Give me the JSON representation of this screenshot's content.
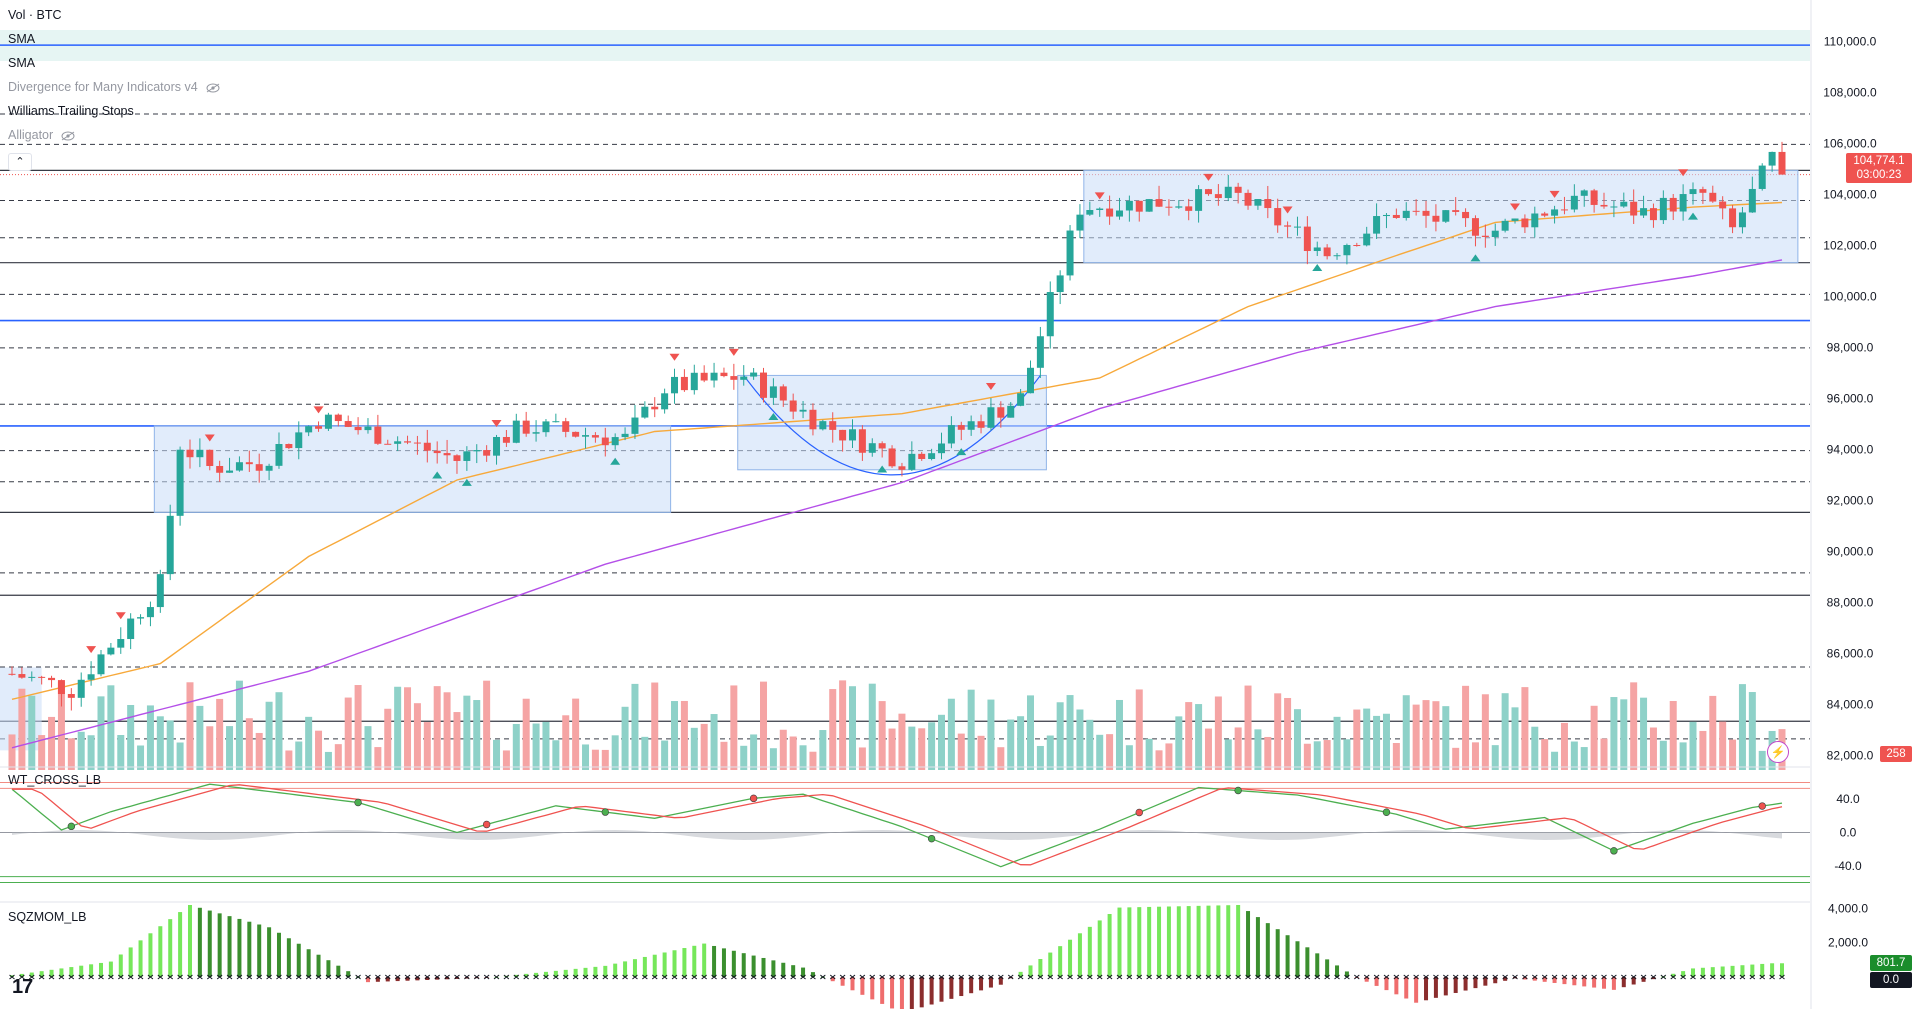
{
  "symbol_label": "Vol · BTC",
  "indicators": [
    {
      "label": "SMA",
      "hidden": false
    },
    {
      "label": "SMA",
      "hidden": false
    },
    {
      "label": "Divergence for Many Indicators v4",
      "hidden": true
    },
    {
      "label": "Williams Trailing Stops",
      "hidden": false
    },
    {
      "label": "Alligator",
      "hidden": true
    }
  ],
  "colors": {
    "up": "#26a69a",
    "down": "#ef5350",
    "vol_up": "#8ed1c8",
    "vol_down": "#f5a4a4",
    "sma_fast": "#f7a93b",
    "sma_slow": "#b44fe8",
    "blue_level": "#2962ff",
    "box_fill": "#c9ddf7"
  },
  "price_axis": {
    "ticks": [
      "110,000.0",
      "108,000.0",
      "106,000.0",
      "104,000.0",
      "102,000.0",
      "100,000.0",
      "98,000.0",
      "96,000.0",
      "94,000.0",
      "92,000.0",
      "90,000.0",
      "88,000.0",
      "86,000.0",
      "84,000.0",
      "82,000.0"
    ]
  },
  "last_price": {
    "value": "104,774.1",
    "countdown": "03:00:23"
  },
  "volume_tag": "258",
  "levels": {
    "blue": [
      109850,
      99050,
      94920
    ],
    "black_solid": [
      104940,
      101320,
      91530,
      88280,
      83340
    ],
    "dashed": [
      107150,
      105960,
      103760,
      102300,
      100080,
      97980,
      95770,
      93950,
      92730,
      89160,
      85470,
      82650
    ]
  },
  "wt_pane": {
    "label": "WT_CROSS_LB",
    "ticks": [
      "40.0",
      "0.0",
      "-40.0"
    ],
    "levels": [
      60,
      53,
      -53,
      -60
    ]
  },
  "sqz_pane": {
    "label": "SQZMOM_LB",
    "ticks": [
      "4,000.0",
      "2,000.0"
    ],
    "value_tag": "801.7",
    "zero_tag": "0.0"
  },
  "logo_text": "17",
  "chart_data": {
    "type": "candlestick",
    "title": "BTC",
    "ylim": [
      81900,
      110600
    ],
    "candle_count": 180,
    "anchors": [
      [
        0,
        85200
      ],
      [
        6,
        84600
      ],
      [
        11,
        86800
      ],
      [
        15,
        88700
      ],
      [
        17,
        94200
      ],
      [
        20,
        93300
      ],
      [
        25,
        93500
      ],
      [
        31,
        95200
      ],
      [
        38,
        94500
      ],
      [
        45,
        93600
      ],
      [
        52,
        94900
      ],
      [
        62,
        94400
      ],
      [
        66,
        96400
      ],
      [
        74,
        96900
      ],
      [
        82,
        95000
      ],
      [
        90,
        93600
      ],
      [
        98,
        95200
      ],
      [
        102,
        96000
      ],
      [
        108,
        103500
      ],
      [
        116,
        103700
      ],
      [
        124,
        103900
      ],
      [
        133,
        101700
      ],
      [
        140,
        103300
      ],
      [
        150,
        102600
      ],
      [
        158,
        103800
      ],
      [
        165,
        103300
      ],
      [
        171,
        104000
      ],
      [
        174,
        102600
      ],
      [
        178,
        105400
      ],
      [
        180,
        104774
      ]
    ],
    "rectangles": [
      {
        "from": 15,
        "to": 66,
        "top": 94920,
        "bottom": 91530
      },
      {
        "from": 109,
        "to": 180,
        "top": 104940,
        "bottom": 101320
      },
      {
        "from": 74,
        "to": 104,
        "top": 96900,
        "bottom": 93200
      }
    ],
    "sma_fast": [
      [
        0,
        84200
      ],
      [
        15,
        85600
      ],
      [
        30,
        89800
      ],
      [
        45,
        92800
      ],
      [
        65,
        94700
      ],
      [
        90,
        95400
      ],
      [
        110,
        96800
      ],
      [
        125,
        99600
      ],
      [
        140,
        101600
      ],
      [
        150,
        102900
      ],
      [
        170,
        103500
      ],
      [
        180,
        103700
      ]
    ],
    "sma_slow": [
      [
        0,
        82300
      ],
      [
        30,
        85300
      ],
      [
        60,
        89500
      ],
      [
        90,
        92700
      ],
      [
        110,
        95600
      ],
      [
        130,
        97800
      ],
      [
        150,
        99600
      ],
      [
        170,
        100800
      ],
      [
        180,
        101500
      ]
    ],
    "wt_series": [
      [
        0,
        52
      ],
      [
        5,
        3
      ],
      [
        10,
        25
      ],
      [
        20,
        58
      ],
      [
        35,
        36
      ],
      [
        45,
        0
      ],
      [
        55,
        32
      ],
      [
        65,
        17
      ],
      [
        75,
        41
      ],
      [
        80,
        46
      ],
      [
        90,
        7
      ],
      [
        100,
        -41
      ],
      [
        110,
        4
      ],
      [
        120,
        54
      ],
      [
        130,
        45
      ],
      [
        140,
        22
      ],
      [
        145,
        4
      ],
      [
        155,
        18
      ],
      [
        162,
        -22
      ],
      [
        170,
        11
      ],
      [
        176,
        30
      ],
      [
        180,
        37
      ]
    ],
    "sqz_series": [
      [
        0,
        100
      ],
      [
        10,
        900
      ],
      [
        18,
        4200
      ],
      [
        26,
        2900
      ],
      [
        36,
        -300
      ],
      [
        48,
        -50
      ],
      [
        60,
        650
      ],
      [
        70,
        1950
      ],
      [
        80,
        550
      ],
      [
        90,
        -2100
      ],
      [
        100,
        -450
      ],
      [
        112,
        4050
      ],
      [
        124,
        4200
      ],
      [
        136,
        -30
      ],
      [
        142,
        -1500
      ],
      [
        152,
        -80
      ],
      [
        162,
        -750
      ],
      [
        170,
        500
      ],
      [
        178,
        800
      ],
      [
        180,
        801.7
      ]
    ],
    "sell_markers": [
      8,
      11,
      20,
      31,
      49,
      67,
      73,
      99,
      110,
      121,
      129,
      152,
      156,
      169
    ],
    "buy_markers": [
      43,
      46,
      61,
      77,
      88,
      96,
      132,
      148,
      170
    ]
  }
}
